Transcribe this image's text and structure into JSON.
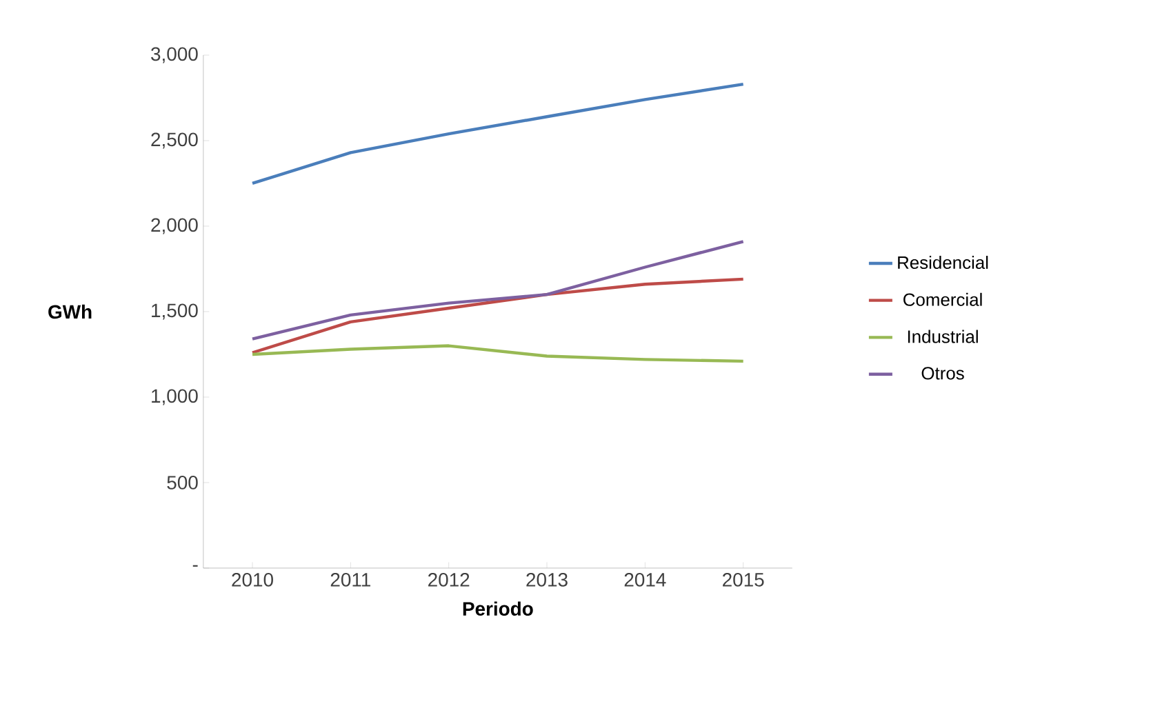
{
  "chart_data": {
    "type": "line",
    "xlabel": "Periodo",
    "ylabel": "GWh",
    "categories": [
      "2010",
      "2011",
      "2012",
      "2013",
      "2014",
      "2015"
    ],
    "series": [
      {
        "name": "Residencial",
        "color": "#4a7ebb",
        "values": [
          2250,
          2430,
          2540,
          2640,
          2740,
          2830
        ]
      },
      {
        "name": "Comercial",
        "color": "#be4b48",
        "values": [
          1260,
          1440,
          1520,
          1600,
          1660,
          1690
        ]
      },
      {
        "name": "Industrial",
        "color": "#98b954",
        "values": [
          1250,
          1280,
          1300,
          1240,
          1220,
          1210
        ]
      },
      {
        "name": "Otros",
        "color": "#7d60a0",
        "values": [
          1340,
          1480,
          1550,
          1600,
          1760,
          1910
        ]
      }
    ],
    "ylim": [
      0,
      3000
    ],
    "yticks": [
      {
        "value": 0,
        "label": "-"
      },
      {
        "value": 500,
        "label": "500"
      },
      {
        "value": 1000,
        "label": "1,000"
      },
      {
        "value": 1500,
        "label": "1,500"
      },
      {
        "value": 2000,
        "label": "2,000"
      },
      {
        "value": 2500,
        "label": "2,500"
      },
      {
        "value": 3000,
        "label": "3,000"
      }
    ],
    "grid": false,
    "legend": "right",
    "marker": "none",
    "line_style": "solid"
  }
}
